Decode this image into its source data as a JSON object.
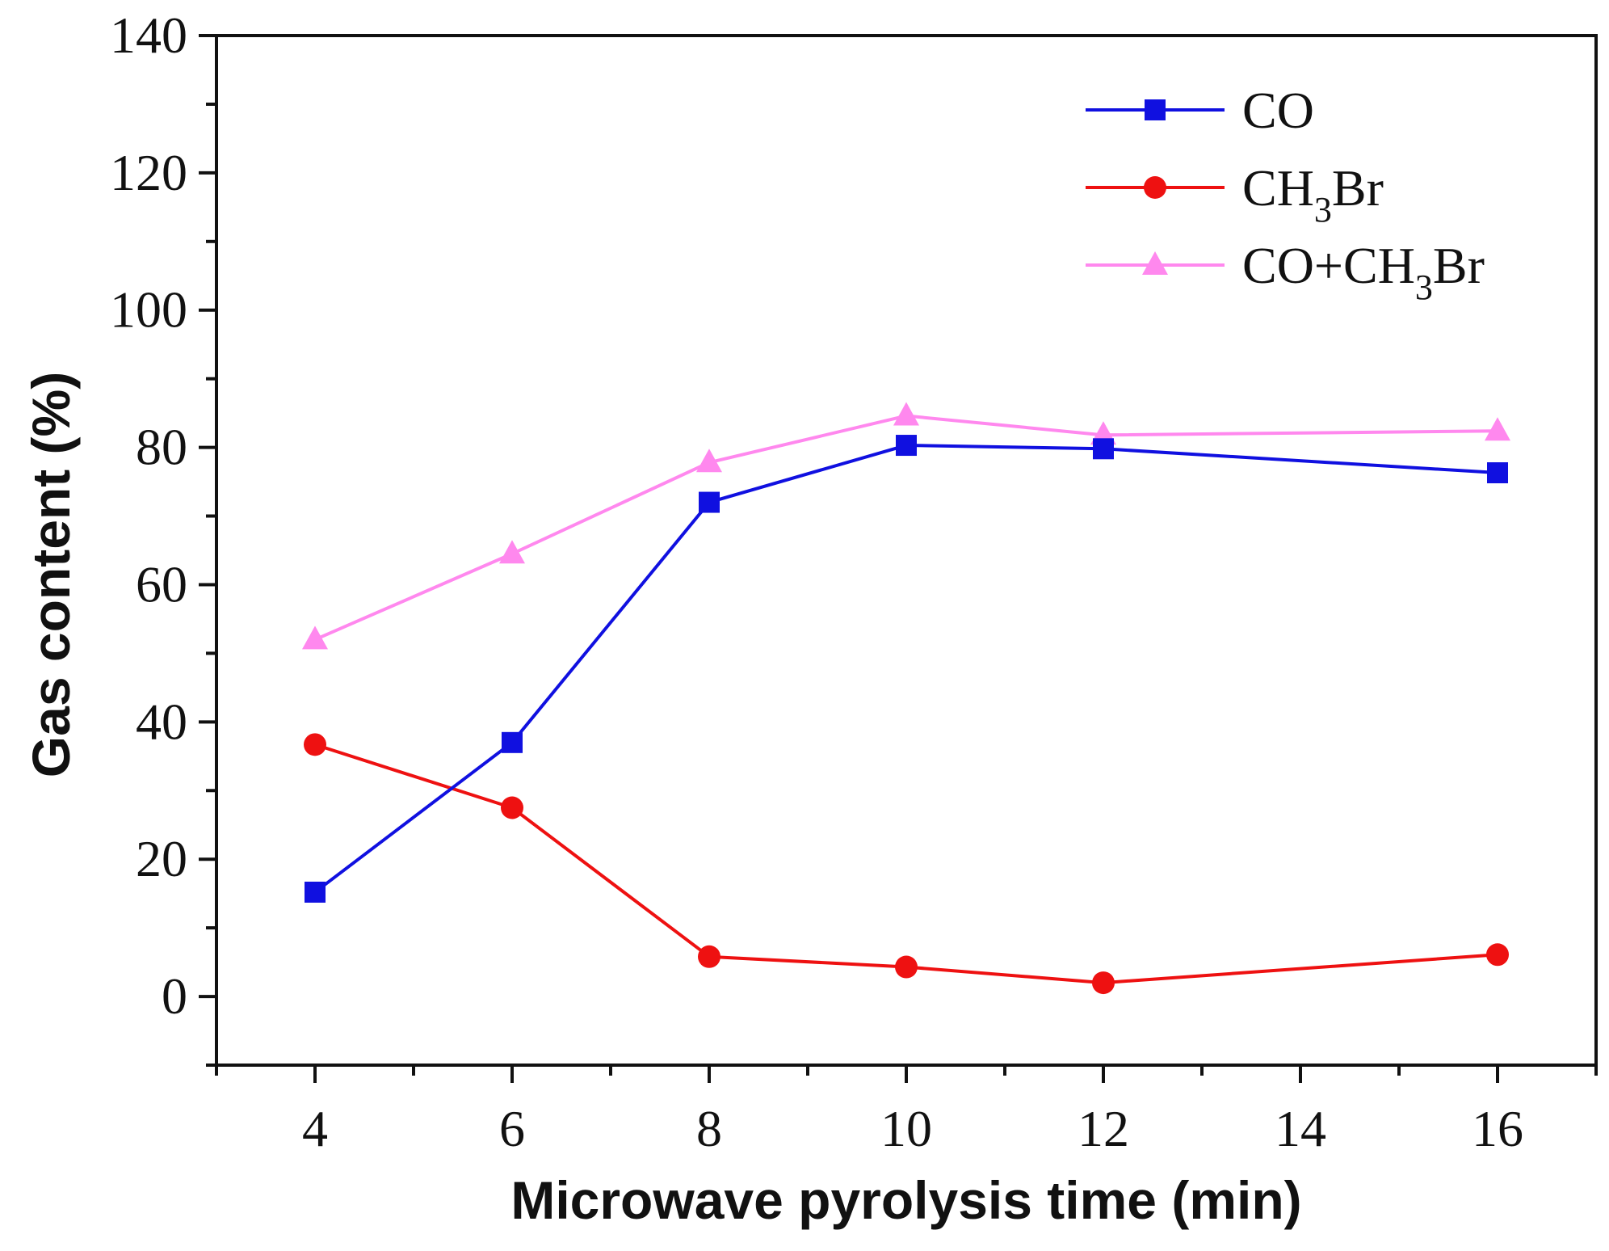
{
  "chart_data": {
    "type": "line",
    "title": "",
    "xlabel": "Microwave pyrolysis time (min)",
    "ylabel": "Gas content (%)",
    "xlim": [
      3,
      17
    ],
    "ylim": [
      -10,
      140
    ],
    "xticks": [
      4,
      6,
      8,
      10,
      12,
      14,
      16
    ],
    "yticks": [
      0,
      20,
      40,
      60,
      80,
      100,
      120,
      140
    ],
    "x": [
      4,
      6,
      8,
      10,
      12,
      16
    ],
    "legend_position": "top-right",
    "series": [
      {
        "name": "CO",
        "label_parts": [
          "CO"
        ],
        "color": "#1010e0",
        "marker": "square",
        "values": [
          15.2,
          37.0,
          72.0,
          80.3,
          79.8,
          76.3
        ]
      },
      {
        "name": "CH3Br",
        "label_parts": [
          "CH",
          "3",
          "Br"
        ],
        "color": "#ee1111",
        "marker": "circle",
        "values": [
          36.7,
          27.5,
          5.8,
          4.3,
          2.0,
          6.1
        ]
      },
      {
        "name": "CO+CH3Br",
        "label_parts": [
          "CO+CH",
          "3",
          "Br"
        ],
        "color": "#ff88ee",
        "marker": "triangle",
        "values": [
          52.0,
          64.5,
          77.8,
          84.6,
          81.8,
          82.4
        ]
      }
    ]
  }
}
